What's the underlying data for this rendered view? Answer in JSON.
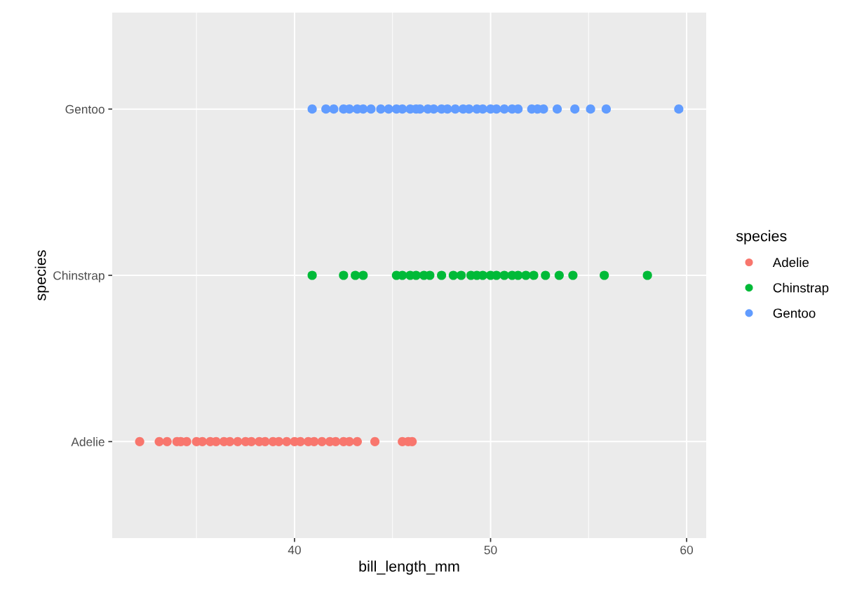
{
  "chart_data": {
    "type": "scatter",
    "orientation": "horizontal",
    "xlabel": "bill_length_mm",
    "ylabel": "species",
    "legend_title": "species",
    "categories": [
      "Gentoo",
      "Chinstrap",
      "Adelie"
    ],
    "xlim": [
      30.7,
      61.0
    ],
    "xticks": [
      {
        "value": 35,
        "label": null
      },
      40,
      {
        "value": 45,
        "label": null
      },
      50,
      {
        "value": 55,
        "label": null
      },
      60
    ],
    "grid": true,
    "legend": "right",
    "marker": "circle",
    "series": [
      {
        "name": "Adelie",
        "color": "#f8766d",
        "values": [
          32.1,
          33.1,
          33.5,
          34.0,
          34.2,
          34.5,
          35.0,
          35.3,
          35.7,
          36.0,
          36.4,
          36.7,
          37.1,
          37.5,
          37.8,
          38.2,
          38.5,
          38.9,
          39.2,
          39.6,
          40.0,
          40.3,
          40.7,
          41.0,
          41.4,
          41.8,
          42.1,
          42.5,
          42.8,
          43.2,
          44.1,
          45.5,
          45.8,
          46.0
        ],
        "x": [
          "Adelie",
          "Adelie",
          "Adelie",
          "Adelie",
          "Adelie",
          "Adelie",
          "Adelie",
          "Adelie",
          "Adelie",
          "Adelie",
          "Adelie",
          "Adelie",
          "Adelie",
          "Adelie",
          "Adelie",
          "Adelie",
          "Adelie",
          "Adelie",
          "Adelie",
          "Adelie",
          "Adelie",
          "Adelie",
          "Adelie",
          "Adelie",
          "Adelie",
          "Adelie",
          "Adelie",
          "Adelie",
          "Adelie",
          "Adelie",
          "Adelie",
          "Adelie",
          "Adelie",
          "Adelie"
        ]
      },
      {
        "name": "Chinstrap",
        "color": "#00ba38",
        "values": [
          40.9,
          null,
          42.5,
          43.1,
          43.5,
          45.2,
          45.5,
          45.9,
          46.2,
          46.6,
          46.9,
          47.5,
          48.1,
          48.5,
          49.0,
          49.3,
          49.6,
          50.0,
          50.3,
          50.7,
          51.1,
          51.4,
          51.8,
          52.2,
          null,
          52.8,
          53.5,
          54.2,
          55.8,
          58.0
        ],
        "x": [
          "Chinstrap",
          "Chinstrap",
          "Chinstrap",
          "Chinstrap",
          "Chinstrap",
          "Chinstrap",
          "Chinstrap",
          "Chinstrap",
          "Chinstrap",
          "Chinstrap",
          "Chinstrap",
          "Chinstrap",
          "Chinstrap",
          "Chinstrap",
          "Chinstrap",
          "Chinstrap",
          "Chinstrap",
          "Chinstrap",
          "Chinstrap",
          "Chinstrap",
          "Chinstrap",
          "Chinstrap",
          "Chinstrap",
          "Chinstrap",
          "Chinstrap",
          "Chinstrap",
          "Chinstrap",
          "Chinstrap",
          "Chinstrap",
          "Chinstrap"
        ]
      },
      {
        "name": "Gentoo",
        "color": "#619cff",
        "values": [
          40.9,
          41.6,
          42.0,
          42.5,
          42.8,
          43.2,
          43.5,
          43.9,
          44.4,
          44.8,
          45.2,
          45.5,
          45.9,
          46.2,
          46.4,
          46.8,
          47.1,
          47.5,
          47.8,
          48.2,
          48.6,
          48.9,
          49.3,
          49.6,
          50.0,
          50.3,
          50.7,
          51.1,
          51.4,
          52.1,
          52.4,
          52.7,
          53.4,
          54.3,
          55.1,
          55.9,
          59.6
        ],
        "x": [
          "Gentoo",
          "Gentoo",
          "Gentoo",
          "Gentoo",
          "Gentoo",
          "Gentoo",
          "Gentoo",
          "Gentoo",
          "Gentoo",
          "Gentoo",
          "Gentoo",
          "Gentoo",
          "Gentoo",
          "Gentoo",
          "Gentoo",
          "Gentoo",
          "Gentoo",
          "Gentoo",
          "Gentoo",
          "Gentoo",
          "Gentoo",
          "Gentoo",
          "Gentoo",
          "Gentoo",
          "Gentoo",
          "Gentoo",
          "Gentoo",
          "Gentoo",
          "Gentoo",
          "Gentoo",
          "Gentoo",
          "Gentoo",
          "Gentoo",
          "Gentoo",
          "Gentoo",
          "Gentoo",
          "Gentoo"
        ]
      }
    ]
  }
}
